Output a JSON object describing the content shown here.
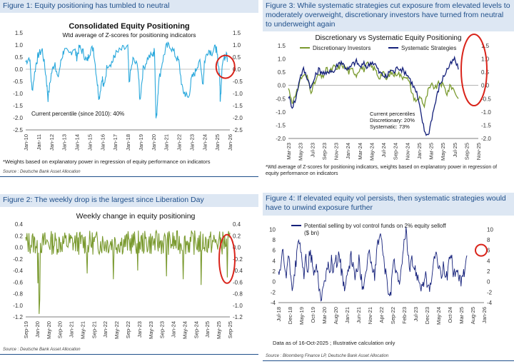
{
  "colors": {
    "title_bg": "#dde7f3",
    "title_text": "#1f4f8a",
    "light_blue": "#29a8dc",
    "olive": "#7a9a2f",
    "navy": "#14207a",
    "red": "#d9241b"
  },
  "fig1": {
    "title": "Figure 1: Equity positioning has tumbled to neutral",
    "source": "Source : Deutsche Bank Asset Allocation",
    "note": "*Weights based on explanatory power in regression of equity performance on indicators",
    "chart_data": {
      "type": "line",
      "title": "Consolidated Equity Positioning",
      "subtitle": "Wtd average of Z-scores for positioning indicators",
      "annotation": "Current percentile (since 2010): 40%",
      "xticks": [
        "Jan-10",
        "Jan-11",
        "Jan-12",
        "Jan-13",
        "Jan-14",
        "Jan-15",
        "Jan-16",
        "Jan-17",
        "Jan-18",
        "Jan-19",
        "Jan-20",
        "Jan-21",
        "Jan-22",
        "Jan-23",
        "Jan-24",
        "Jan-25",
        "Jan-26"
      ],
      "yticks": [
        "1.5",
        "1.0",
        "0.5",
        "0.0",
        "-0.5",
        "-1.0",
        "-1.5",
        "-2.0",
        "-2.5"
      ],
      "ylim": [
        -2.5,
        1.5
      ],
      "series": [
        {
          "color": "#29a8dc",
          "x": [
            2010,
            2010.3,
            2010.5,
            2010.8,
            2011,
            2011.3,
            2011.6,
            2011.75,
            2012,
            2012.3,
            2012.5,
            2012.8,
            2013,
            2013.4,
            2013.8,
            2014,
            2014.2,
            2014.5,
            2014.8,
            2015,
            2015.3,
            2015.6,
            2015.75,
            2016,
            2016.1,
            2016.4,
            2016.8,
            2017,
            2017.5,
            2018,
            2018.1,
            2018.4,
            2018.8,
            2018.95,
            2019.2,
            2019.6,
            2020,
            2020.1,
            2020.2,
            2020.25,
            2020.4,
            2020.7,
            2021,
            2021.3,
            2021.7,
            2022,
            2022.3,
            2022.5,
            2022.75,
            2023,
            2023.3,
            2023.6,
            2023.9,
            2024,
            2024.3,
            2024.6,
            2024.9,
            2025,
            2025.2,
            2025.25,
            2025.4,
            2025.6,
            2025.75,
            2025.8
          ],
          "y": [
            0.3,
            0.5,
            -0.9,
            0.2,
            0.6,
            0.8,
            -0.3,
            -1.2,
            -0.2,
            0.3,
            -0.4,
            0.4,
            0.8,
            0.6,
            0.9,
            0.5,
            0.9,
            0.7,
            0.3,
            0.7,
            0.9,
            -0.5,
            -1.2,
            -0.3,
            -0.8,
            0.2,
            0.3,
            0.6,
            0.8,
            0.9,
            -0.5,
            0.4,
            0.1,
            -1.3,
            0.0,
            0.5,
            0.6,
            0.8,
            -1.8,
            -2.0,
            -0.6,
            0.3,
            0.9,
            1.0,
            0.6,
            0.3,
            -0.9,
            -1.0,
            -1.2,
            -0.4,
            -0.1,
            0.4,
            -0.6,
            0.3,
            0.8,
            0.7,
            0.9,
            0.6,
            -0.2,
            -1.4,
            0.3,
            0.5,
            0.8,
            0.3
          ]
        }
      ]
    }
  },
  "fig2": {
    "title": "Figure 2: The weekly drop is the largest since Liberation Day",
    "source": "Source : Deutsche Bank Asset Allocation",
    "chart_data": {
      "type": "line",
      "title": "Weekly change in equity positioning",
      "xticks": [
        "Sep-19",
        "Jan-20",
        "May-20",
        "Sep-20",
        "Jan-21",
        "May-21",
        "Sep-21",
        "Jan-22",
        "May-22",
        "Sep-22",
        "Jan-23",
        "May-23",
        "Sep-23",
        "Jan-24",
        "May-24",
        "Sep-24",
        "Jan-25",
        "May-25",
        "Sep-25"
      ],
      "yticks": [
        "0.4",
        "0.2",
        "0.0",
        "-0.2",
        "-0.4",
        "-0.6",
        "-0.8",
        "-1.0",
        "-1.2"
      ],
      "ylim": [
        -1.2,
        0.4
      ],
      "series": [
        {
          "color": "#7a9a2f",
          "spikes": [
            {
              "x": 0.06,
              "y": -0.62
            },
            {
              "x": 0.065,
              "y": -1.15
            },
            {
              "x": 0.07,
              "y": -0.9
            },
            {
              "x": 0.08,
              "y": 0.15
            },
            {
              "x": 0.3,
              "y": -0.45
            },
            {
              "x": 0.43,
              "y": -0.55
            },
            {
              "x": 0.55,
              "y": -0.4
            },
            {
              "x": 0.69,
              "y": -0.5
            },
            {
              "x": 0.77,
              "y": -0.55
            },
            {
              "x": 0.86,
              "y": -0.65
            },
            {
              "x": 0.987,
              "y": -0.52
            }
          ]
        }
      ]
    }
  },
  "fig3": {
    "title": "Figure 3: While systematic strategies cut exposure from elevated levels to moderately overweight, discretionary investors have turned from neutral to underweight again",
    "note": "*Wtd average of Z-scores for positioning indicators, weights based on explanatory power in regression of equity performance on indicators",
    "chart_data": {
      "type": "line",
      "title": "Discretionary  vs Systematic Equity Positioning",
      "legend": [
        "Discretionary Investors",
        "Systematic Strategies"
      ],
      "annotation": [
        "Current percentiles",
        "Discretionary: 20%",
        "Systematic: 73%"
      ],
      "xticks": [
        "Mar-23",
        "May-23",
        "Jul-23",
        "Sep-23",
        "Nov-23",
        "Jan-24",
        "Mar-24",
        "May-24",
        "Jul-24",
        "Sep-24",
        "Nov-24",
        "Jan-25",
        "Mar-25",
        "May-25",
        "Jul-25",
        "Sep-25",
        "Nov-25"
      ],
      "yticks": [
        "1.5",
        "1.0",
        "0.5",
        "0.0",
        "-0.5",
        "-1.0",
        "-1.5",
        "-2.0"
      ],
      "ylim": [
        -2.0,
        1.5
      ],
      "series": [
        {
          "name": "Discretionary Investors",
          "color": "#7a9a2f",
          "y": [
            -0.1,
            -0.6,
            -0.4,
            0.2,
            0.4,
            0.3,
            -0.2,
            0.1,
            0.4,
            0.3,
            0.6,
            0.5,
            0.7,
            0.6,
            0.8,
            0.7,
            0.5,
            0.6,
            0.4,
            0.7,
            0.6,
            0.8,
            0.7,
            0.6,
            0.3,
            0.5,
            0.2,
            0.5,
            0.4,
            0.5,
            0.3,
            0.4,
            0.1,
            -0.4,
            -0.6,
            -0.4,
            -0.8,
            -0.2,
            0.0,
            -0.1,
            0.1,
            0.0,
            -0.3,
            0.0,
            -0.2,
            -0.5
          ]
        },
        {
          "name": "Systematic Strategies",
          "color": "#14207a",
          "y": [
            -0.4,
            -0.8,
            -0.5,
            0.3,
            0.6,
            0.3,
            -0.1,
            0.3,
            0.6,
            0.5,
            0.4,
            0.6,
            0.5,
            0.8,
            0.9,
            0.7,
            0.6,
            0.8,
            0.9,
            0.7,
            0.8,
            0.7,
            0.9,
            0.8,
            0.5,
            0.4,
            0.3,
            0.6,
            0.5,
            0.7,
            0.6,
            0.5,
            0.3,
            0.0,
            -0.3,
            -1.0,
            -1.7,
            -1.9,
            -1.2,
            -0.6,
            0.0,
            0.3,
            0.6,
            0.8,
            1.0,
            0.6
          ]
        }
      ]
    }
  },
  "fig4": {
    "title": "Figure 4: If elevated equity vol persists, then systematic strategies would have to unwind exposure further",
    "source": "Source : Bloomberg Finance LP, Deutsche Bank Asset Allocation",
    "chart_data": {
      "type": "line",
      "legend": [
        "Potential selling by vol control funds on 2% equity selloff",
        "($ bn)"
      ],
      "annotation": "Data as of 16-Oct-2025 ; Illustrative calculation only",
      "xticks": [
        "Jul-18",
        "Dec-18",
        "May-19",
        "Oct-19",
        "Mar-20",
        "Aug-20",
        "Jan-21",
        "Jun-21",
        "Nov-21",
        "Apr-22",
        "Sep-22",
        "Feb-23",
        "Jul-23",
        "Dec-23",
        "May-24",
        "Oct-24",
        "Mar-25",
        "Aug-25",
        "Jan-26"
      ],
      "yticks": [
        "10",
        "8",
        "6",
        "4",
        "2",
        "0",
        "-2",
        "-4"
      ],
      "ylim": [
        -4,
        11
      ],
      "series": [
        {
          "name": "Potential selling by vol control funds on 2% equity selloff",
          "color": "#14207a",
          "y": [
            2,
            1,
            6,
            3,
            1,
            5,
            2,
            -1,
            1,
            4,
            7,
            8,
            3,
            1,
            5,
            2,
            6,
            4,
            1,
            3,
            2,
            -2,
            -3,
            -1,
            1,
            3,
            2,
            4,
            2,
            5,
            3,
            6,
            2,
            0,
            -1,
            1,
            2,
            5,
            3,
            1,
            2,
            4,
            1,
            -1,
            1,
            3,
            6,
            4,
            2,
            1,
            5,
            8,
            10,
            6,
            3,
            1,
            -2,
            -3,
            1,
            4,
            2,
            1,
            0,
            3,
            8,
            10,
            5,
            2,
            4,
            3,
            2,
            1,
            0,
            -1,
            0,
            1,
            -1,
            -2,
            1,
            3,
            6,
            4,
            2,
            1,
            3,
            2,
            1,
            4,
            5,
            2,
            1,
            3,
            1,
            0,
            1,
            2,
            5
          ]
        }
      ]
    }
  }
}
